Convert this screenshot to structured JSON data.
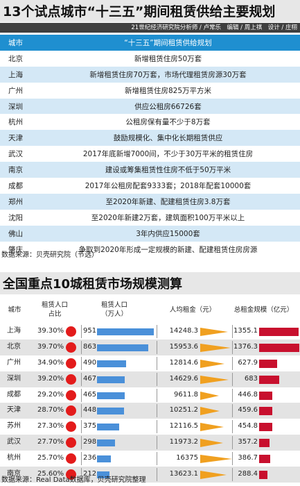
{
  "section1": {
    "title": "13个试点城市“十三五”期间租赁供给主要规划",
    "credit": "21世纪经济研究院分析师 / 卢常乐　编辑 / 周上祺　设计 / 庄栩",
    "header": {
      "city": "城市",
      "plan": "“十三五”期间租赁供给规划"
    },
    "rows": [
      {
        "city": "北京",
        "plan": "新增租赁住房50万套"
      },
      {
        "city": "上海",
        "plan": "新增租赁住房70万套，市场代理租赁房源30万套"
      },
      {
        "city": "广州",
        "plan": "新增租赁住房825万平方米"
      },
      {
        "city": "深圳",
        "plan": "供应公租房66726套"
      },
      {
        "city": "杭州",
        "plan": "公租房保有量不少于8万套"
      },
      {
        "city": "天津",
        "plan": "鼓励规模化、集中化长期租赁供应"
      },
      {
        "city": "武汉",
        "plan": "2017年底新增7000间，不少于30万平米的租赁住房"
      },
      {
        "city": "南京",
        "plan": "建设或筹集租赁性住房不低于50万平米"
      },
      {
        "city": "成都",
        "plan": "2017年公租房配套9333套；2018年配套10000套"
      },
      {
        "city": "郑州",
        "plan": "至2020年新建、配建租赁住房3.8万套"
      },
      {
        "city": "沈阳",
        "plan": "至2020年新建2万套，建筑面积100万平米以上"
      },
      {
        "city": "佛山",
        "plan": "3年内供应15000套"
      },
      {
        "city": "肇庆",
        "plan": "争取到2020年形成一定规模的新建、配建租赁住房房源"
      }
    ],
    "source": "数据来源：贝壳研究院（节选）"
  },
  "section2": {
    "title": "全国重点10城租赁市场规模测算",
    "header": {
      "city": "城市",
      "share": "租赁人口\n占比",
      "pop": "租赁人口\n（万人）",
      "rent": "人均租金（元）",
      "total": "总租金规模（亿元）"
    },
    "rows": [
      {
        "city": "上海",
        "share": "39.30%",
        "pop": "951",
        "rent": "14248.3",
        "total": "1355.1"
      },
      {
        "city": "北京",
        "share": "39.70%",
        "pop": "863",
        "rent": "15953.6",
        "total": "1376.3"
      },
      {
        "city": "广州",
        "share": "34.90%",
        "pop": "490",
        "rent": "12814.6",
        "total": "627.9"
      },
      {
        "city": "深圳",
        "share": "39.20%",
        "pop": "467",
        "rent": "14629.6",
        "total": "683"
      },
      {
        "city": "成都",
        "share": "29.20%",
        "pop": "465",
        "rent": "9611.8",
        "total": "446.8"
      },
      {
        "city": "天津",
        "share": "28.70%",
        "pop": "448",
        "rent": "10251.2",
        "total": "459.6"
      },
      {
        "city": "苏州",
        "share": "27.30%",
        "pop": "375",
        "rent": "12116.5",
        "total": "454.8"
      },
      {
        "city": "武汉",
        "share": "27.70%",
        "pop": "298",
        "rent": "11973.2",
        "total": "357.2"
      },
      {
        "city": "杭州",
        "share": "25.70%",
        "pop": "236",
        "rent": "16375",
        "total": "386.7"
      },
      {
        "city": "南京",
        "share": "25.60%",
        "pop": "212",
        "rent": "13623.1",
        "total": "288.4"
      }
    ],
    "source": "数据来源：Real Data数据库，贝壳研究院整理"
  },
  "colors": {
    "header_blue": "#1f8fd0",
    "row_blue": "#d4e8f6",
    "dot_red": "#e31b1b",
    "pop_bar": "#4a90d9",
    "rent_tri": "#f0a020",
    "total_bar": "#c8102e"
  }
}
